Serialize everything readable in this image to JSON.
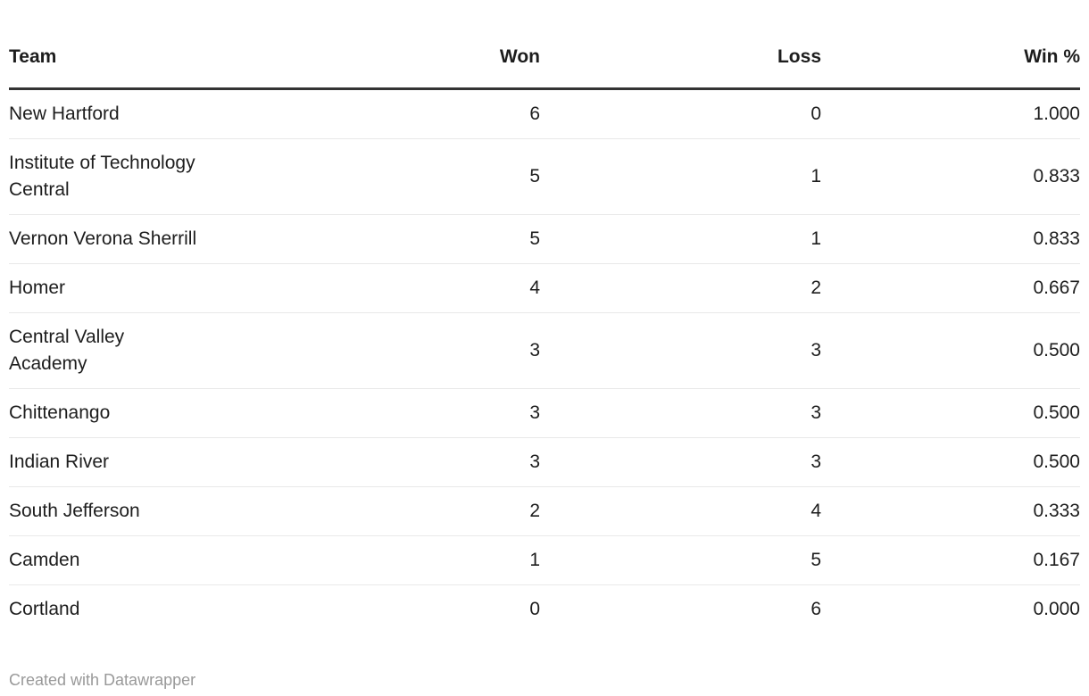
{
  "chart_data": {
    "type": "table",
    "columns": [
      "Team",
      "Won",
      "Loss",
      "Win %"
    ],
    "rows": [
      [
        "New Hartford",
        6,
        0,
        "1.000"
      ],
      [
        "Institute of Technology Central",
        5,
        1,
        "0.833"
      ],
      [
        "Vernon Verona Sherrill",
        5,
        1,
        "0.833"
      ],
      [
        "Homer",
        4,
        2,
        "0.667"
      ],
      [
        "Central Valley Academy",
        3,
        3,
        "0.500"
      ],
      [
        "Chittenango",
        3,
        3,
        "0.500"
      ],
      [
        "Indian River",
        3,
        3,
        "0.500"
      ],
      [
        "South Jefferson",
        2,
        4,
        "0.333"
      ],
      [
        "Camden",
        1,
        5,
        "0.167"
      ],
      [
        "Cortland",
        0,
        6,
        "0.000"
      ]
    ],
    "title": "",
    "legend_position": "none",
    "grid": "horizontal-dividers"
  },
  "header": {
    "team": "Team",
    "won": "Won",
    "loss": "Loss",
    "win_pct": "Win %"
  },
  "rows": [
    {
      "team": "New Hartford",
      "won": "6",
      "loss": "0",
      "win_pct": "1.000"
    },
    {
      "team": "Institute of Technology\nCentral",
      "won": "5",
      "loss": "1",
      "win_pct": "0.833"
    },
    {
      "team": "Vernon Verona Sherrill",
      "won": "5",
      "loss": "1",
      "win_pct": "0.833"
    },
    {
      "team": "Homer",
      "won": "4",
      "loss": "2",
      "win_pct": "0.667"
    },
    {
      "team": "Central Valley\nAcademy",
      "won": "3",
      "loss": "3",
      "win_pct": "0.500"
    },
    {
      "team": "Chittenango",
      "won": "3",
      "loss": "3",
      "win_pct": "0.500"
    },
    {
      "team": "Indian River",
      "won": "3",
      "loss": "3",
      "win_pct": "0.500"
    },
    {
      "team": "South Jefferson",
      "won": "2",
      "loss": "4",
      "win_pct": "0.333"
    },
    {
      "team": "Camden",
      "won": "1",
      "loss": "5",
      "win_pct": "0.167"
    },
    {
      "team": "Cortland",
      "won": "0",
      "loss": "6",
      "win_pct": "0.000"
    }
  ],
  "footer": {
    "credit": "Created with Datawrapper"
  },
  "colors": {
    "background": "#ffffff",
    "text": "#1d1d1d",
    "header_rule": "#333333",
    "row_divider": "#e9e9e9",
    "footer_text": "#999999"
  }
}
